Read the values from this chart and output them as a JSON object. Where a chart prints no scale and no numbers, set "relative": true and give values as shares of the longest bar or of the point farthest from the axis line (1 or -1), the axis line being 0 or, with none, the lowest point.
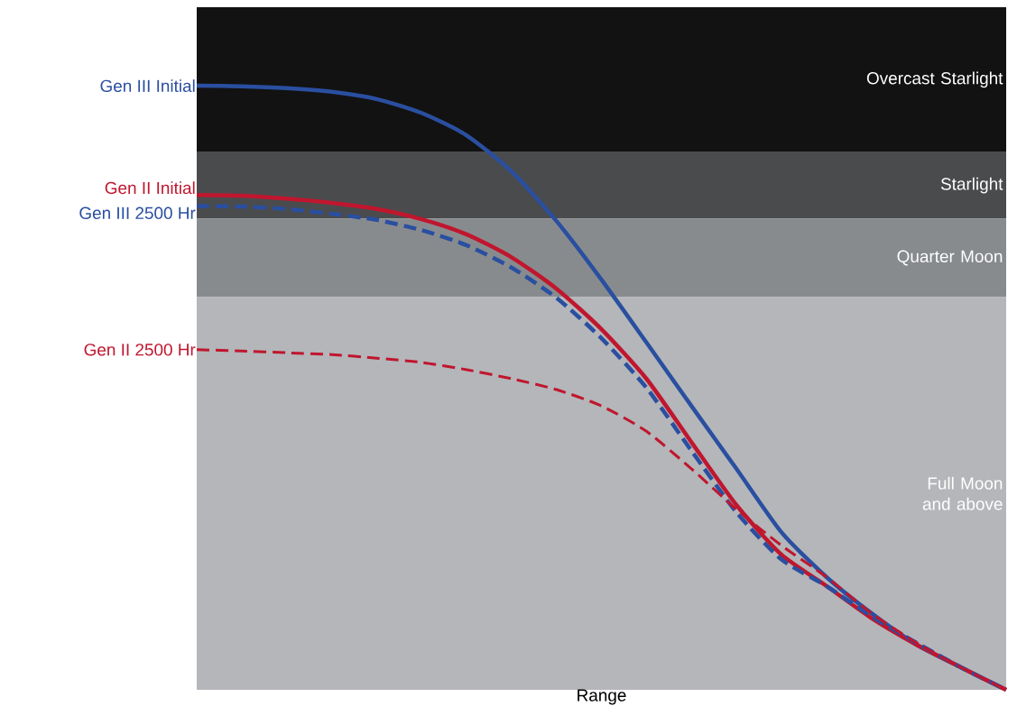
{
  "chart_data": {
    "type": "line",
    "relative": true,
    "xlabel": "Range",
    "categories": [
      null,
      null,
      null,
      null,
      null,
      null,
      null,
      null,
      null,
      null,
      null,
      null,
      null,
      null,
      null,
      null,
      null,
      null,
      null
    ],
    "bands": [
      {
        "axis": "y",
        "from": 0.89,
        "to": 1.13,
        "label": "Overcast Starlight",
        "color": "#121212"
      },
      {
        "axis": "y",
        "from": 0.78,
        "to": 0.89,
        "label": "Starlight",
        "color": "#4a4b4d"
      },
      {
        "axis": "y",
        "from": 0.65,
        "to": 0.78,
        "label": "Quarter Moon",
        "color": "#888b8e"
      },
      {
        "axis": "y",
        "from": 0,
        "to": 0.65,
        "label": "Full Moon and above",
        "color": "#b4b6b9"
      }
    ],
    "series": [
      {
        "name": "Gen III Initial",
        "color": "#2a4fa0",
        "line_style": "solid",
        "values": [
          1.0,
          0.999,
          0.996,
          0.99,
          0.978,
          0.955,
          0.918,
          0.858,
          0.776,
          0.679,
          0.575,
          0.47,
          0.366,
          0.261,
          0.187,
          0.127,
          0.075,
          0.037,
          0
        ]
      },
      {
        "name": "Gen II Initial",
        "color": "#c0162e",
        "line_style": "solid",
        "values": [
          0.819,
          0.818,
          0.813,
          0.806,
          0.796,
          0.779,
          0.754,
          0.716,
          0.664,
          0.597,
          0.515,
          0.41,
          0.306,
          0.224,
          0.172,
          0.119,
          0.075,
          0.037,
          0
        ]
      },
      {
        "name": "Gen III 2500 Hr",
        "color": "#2a4fa0",
        "line_style": "dashed",
        "values": [
          0.801,
          0.8,
          0.796,
          0.788,
          0.778,
          0.761,
          0.736,
          0.699,
          0.649,
          0.582,
          0.5,
          0.396,
          0.294,
          0.216,
          0.172,
          0.122,
          0.078,
          0.037,
          0
        ]
      },
      {
        "name": "Gen II 2500 Hr",
        "color": "#c0162e",
        "line_style": "dashed",
        "values": [
          0.563,
          0.561,
          0.558,
          0.555,
          0.549,
          0.542,
          0.53,
          0.515,
          0.497,
          0.47,
          0.428,
          0.366,
          0.299,
          0.239,
          0.187,
          0.127,
          0.078,
          0.037,
          0
        ]
      }
    ]
  }
}
